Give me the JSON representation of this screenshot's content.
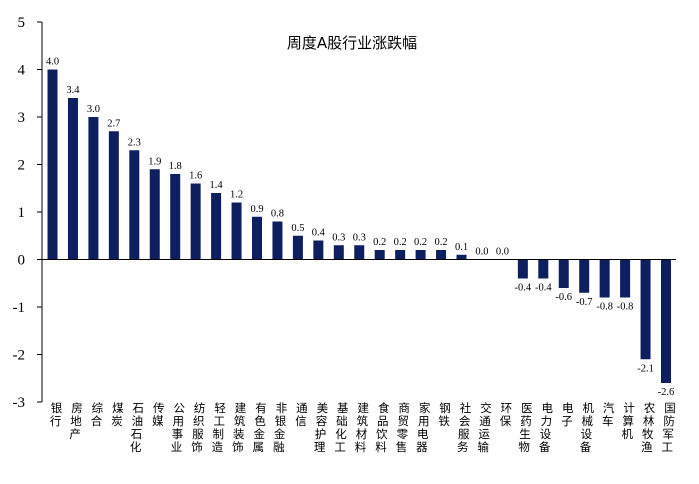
{
  "chart_data": {
    "type": "bar",
    "title": "周度A股行业涨跌幅",
    "xlabel": "",
    "ylabel": "",
    "ylim": [
      -3,
      5
    ],
    "yticks": [
      5,
      4,
      3,
      2,
      1,
      0,
      -1,
      -2,
      -3
    ],
    "grid": false,
    "legend": "none",
    "bar_color": "#0d1f5e",
    "categories": [
      "银行",
      "房地产",
      "综合",
      "煤炭",
      "石油石化",
      "传媒",
      "公用事业",
      "纺织服饰",
      "轻工制造",
      "建筑装饰",
      "有色金属",
      "非银金融",
      "通信",
      "美容护理",
      "基础化工",
      "建筑材料",
      "食品饮料",
      "商贸零售",
      "家用电器",
      "钢铁",
      "社会服务",
      "交通运输",
      "环保",
      "医药生物",
      "电力设备",
      "电子",
      "机械设备",
      "汽车",
      "计算机",
      "农林牧渔",
      "国防军工"
    ],
    "values": [
      4.0,
      3.4,
      3.0,
      2.7,
      2.3,
      1.9,
      1.8,
      1.6,
      1.4,
      1.2,
      0.9,
      0.8,
      0.5,
      0.4,
      0.3,
      0.3,
      0.2,
      0.2,
      0.2,
      0.2,
      0.1,
      0.0,
      0.0,
      -0.4,
      -0.4,
      -0.6,
      -0.7,
      -0.8,
      -0.8,
      -2.1,
      -2.6
    ],
    "data_labels": [
      "4.0",
      "3.4",
      "3.0",
      "2.7",
      "2.3",
      "1.9",
      "1.8",
      "1.6",
      "1.4",
      "1.2",
      "0.9",
      "0.8",
      "0.5",
      "0.4",
      "0.3",
      "0.3",
      "0.2",
      "0.2",
      "0.2",
      "0.2",
      "0.1",
      "0.0",
      "0.0",
      "-0.4",
      "-0.4",
      "-0.6",
      "-0.7",
      "-0.8",
      "-0.8",
      "-2.1",
      "-2.6"
    ]
  }
}
